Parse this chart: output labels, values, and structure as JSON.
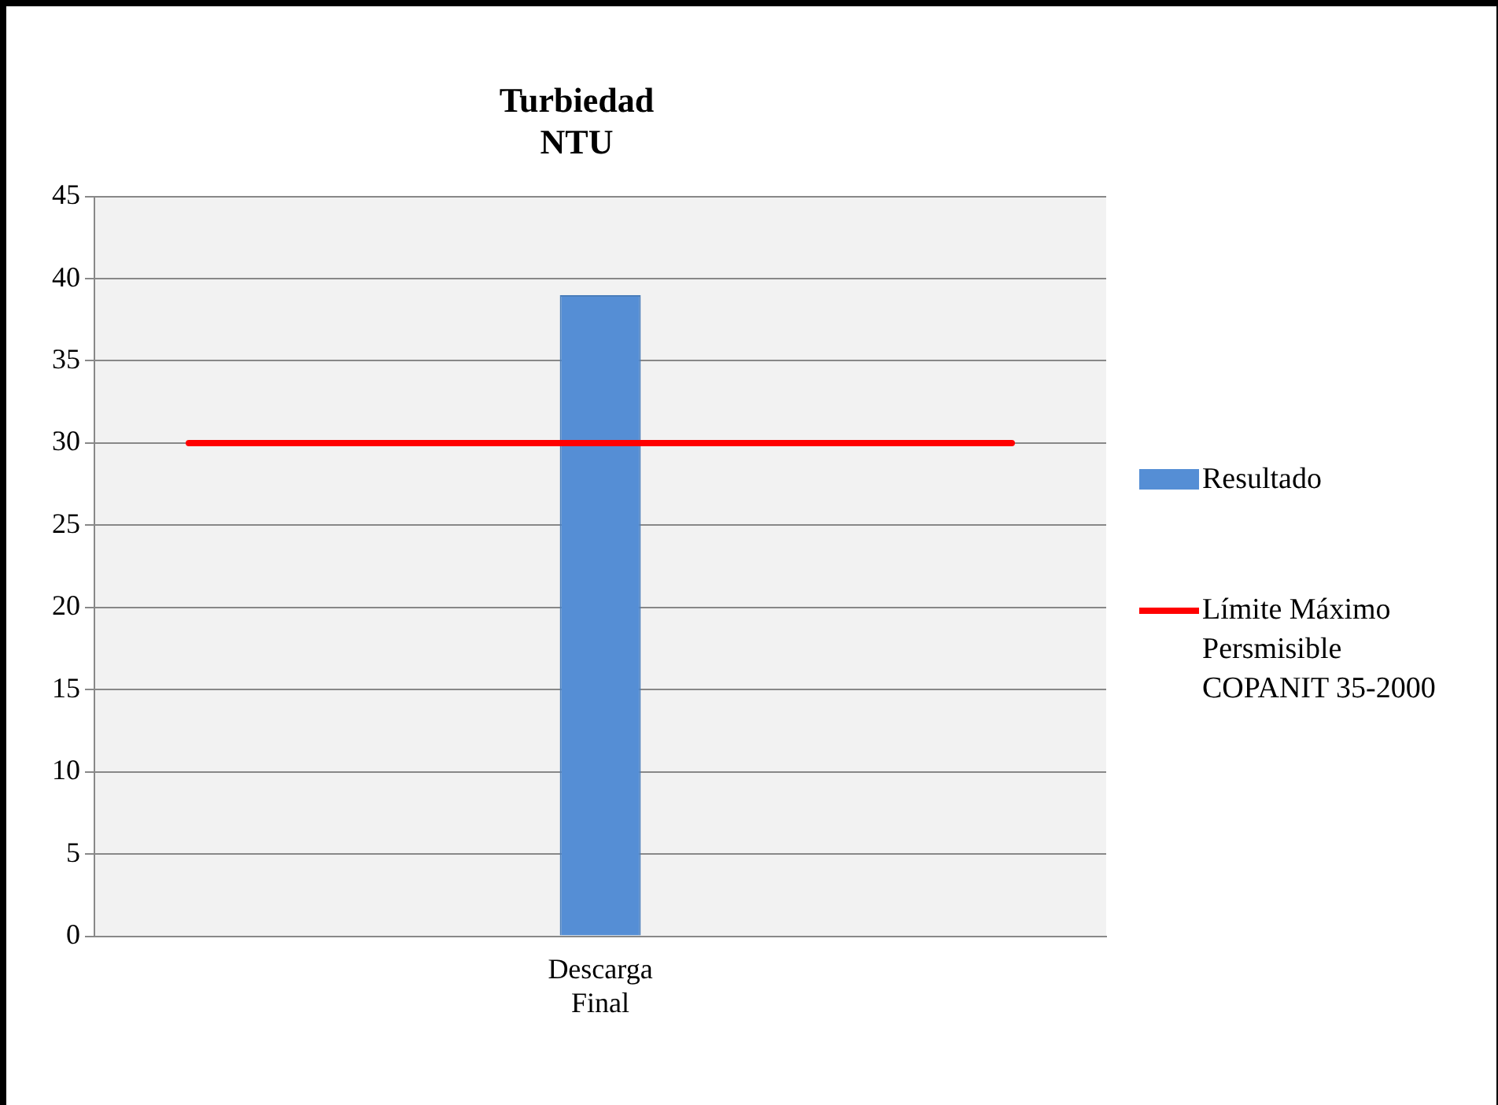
{
  "chart_data": {
    "type": "bar",
    "title": "Turbiedad",
    "subtitle": "NTU",
    "categories": [
      "Descarga Final"
    ],
    "series": [
      {
        "name": "Resultado",
        "color": "#558ed5",
        "values": [
          39
        ]
      }
    ],
    "ref_lines": [
      {
        "axis": "y",
        "value": 30,
        "label": "Límite Máximo Persmisible COPANIT 35-2000",
        "color": "#ff0000"
      }
    ],
    "ylim": [
      0,
      45
    ],
    "yticks": [
      0,
      5,
      10,
      15,
      20,
      25,
      30,
      35,
      40,
      45
    ],
    "grid": "y",
    "legend": "right"
  }
}
